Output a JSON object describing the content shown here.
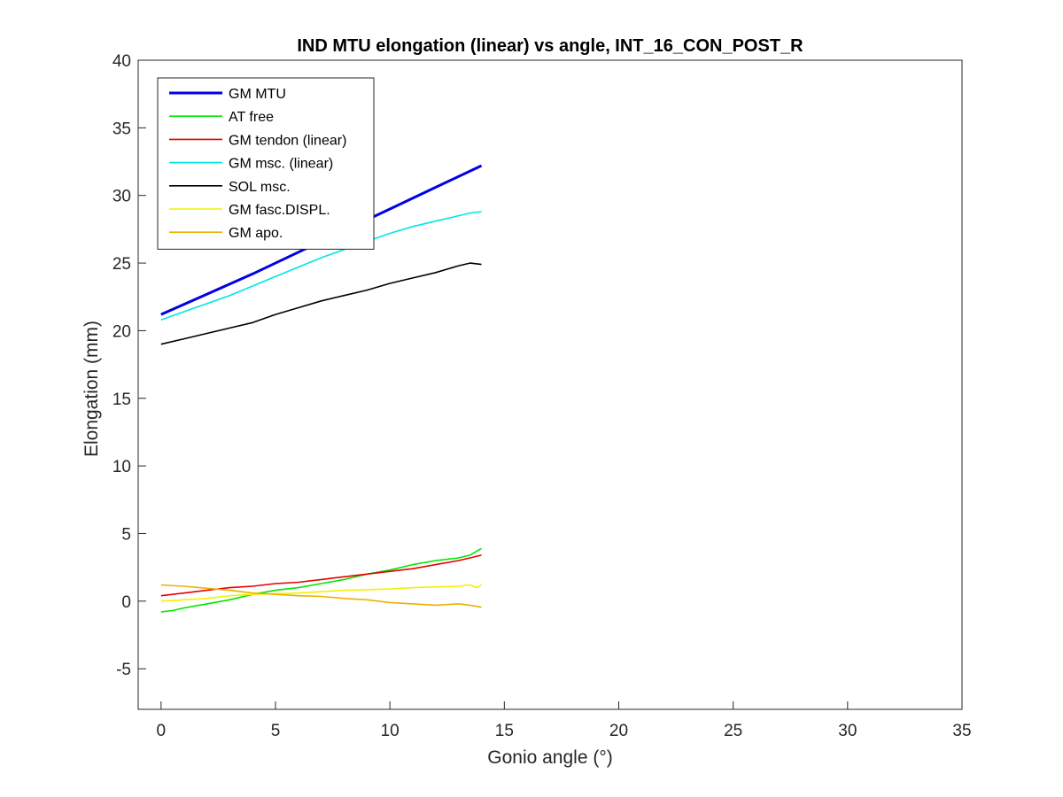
{
  "chart_data": {
    "type": "line",
    "title": "IND MTU elongation (linear) vs angle, INT_16_CON_POST_R",
    "xlabel": "Gonio angle (°)",
    "ylabel": "Elongation (mm)",
    "xlim": [
      -1,
      35
    ],
    "ylim": [
      -8,
      40
    ],
    "xticks": [
      0,
      5,
      10,
      15,
      20,
      25,
      30,
      35
    ],
    "yticks": [
      -5,
      0,
      5,
      10,
      15,
      20,
      25,
      30,
      35,
      40
    ],
    "grid": false,
    "legend_position": "top-left",
    "series": [
      {
        "name": "GM MTU",
        "color": "#0000e6",
        "bold": true,
        "x": [
          0,
          2,
          4,
          6,
          8,
          10,
          12,
          14
        ],
        "y": [
          21.2,
          22.7,
          24.2,
          25.8,
          27.4,
          29.0,
          30.6,
          32.2
        ]
      },
      {
        "name": "AT free",
        "color": "#00e600",
        "x": [
          0,
          0.5,
          1,
          2,
          3,
          4,
          5,
          6,
          7,
          8,
          9,
          10,
          11,
          12,
          13,
          13.5,
          13.8,
          14
        ],
        "y": [
          -0.8,
          -0.7,
          -0.5,
          -0.2,
          0.1,
          0.5,
          0.8,
          1.0,
          1.3,
          1.6,
          2.0,
          2.3,
          2.7,
          3.0,
          3.2,
          3.4,
          3.7,
          3.9
        ]
      },
      {
        "name": "GM tendon (linear)",
        "color": "#e60000",
        "x": [
          0,
          1,
          2,
          3,
          4,
          5,
          6,
          7,
          8,
          9,
          10,
          11,
          12,
          13,
          13.5,
          14
        ],
        "y": [
          0.4,
          0.6,
          0.8,
          1.0,
          1.1,
          1.3,
          1.4,
          1.6,
          1.8,
          2.0,
          2.2,
          2.4,
          2.7,
          3.0,
          3.2,
          3.4
        ]
      },
      {
        "name": "GM msc. (linear)",
        "color": "#00e6e6",
        "x": [
          0,
          1,
          2,
          3,
          4,
          5,
          6,
          7,
          8,
          9,
          10,
          11,
          12,
          13,
          13.5,
          14
        ],
        "y": [
          20.8,
          21.4,
          22.0,
          22.6,
          23.3,
          24.0,
          24.7,
          25.4,
          26.0,
          26.6,
          27.2,
          27.7,
          28.1,
          28.5,
          28.7,
          28.8
        ]
      },
      {
        "name": "SOL msc.",
        "color": "#000000",
        "x": [
          0,
          1,
          2,
          3,
          4,
          5,
          6,
          7,
          8,
          9,
          10,
          11,
          12,
          13,
          13.5,
          14
        ],
        "y": [
          19.0,
          19.4,
          19.8,
          20.2,
          20.6,
          21.2,
          21.7,
          22.2,
          22.6,
          23.0,
          23.5,
          23.9,
          24.3,
          24.8,
          25.0,
          24.9
        ]
      },
      {
        "name": "GM fasc.DISPL.",
        "color": "#f2f200",
        "x": [
          0,
          1,
          2,
          3,
          4,
          5,
          6,
          7,
          8,
          9,
          10,
          11,
          12,
          13,
          13.5,
          13.8,
          14
        ],
        "y": [
          0.0,
          0.1,
          0.2,
          0.4,
          0.5,
          0.55,
          0.6,
          0.7,
          0.8,
          0.85,
          0.9,
          1.0,
          1.05,
          1.1,
          1.2,
          1.0,
          1.2
        ]
      },
      {
        "name": "GM apo.",
        "color": "#edb000",
        "x": [
          0,
          1,
          2,
          3,
          4,
          5,
          6,
          7,
          8,
          9,
          10,
          11,
          12,
          13,
          13.5,
          14
        ],
        "y": [
          1.2,
          1.1,
          0.95,
          0.8,
          0.6,
          0.5,
          0.4,
          0.35,
          0.2,
          0.1,
          -0.1,
          -0.2,
          -0.3,
          -0.2,
          -0.3,
          -0.45
        ]
      }
    ]
  }
}
